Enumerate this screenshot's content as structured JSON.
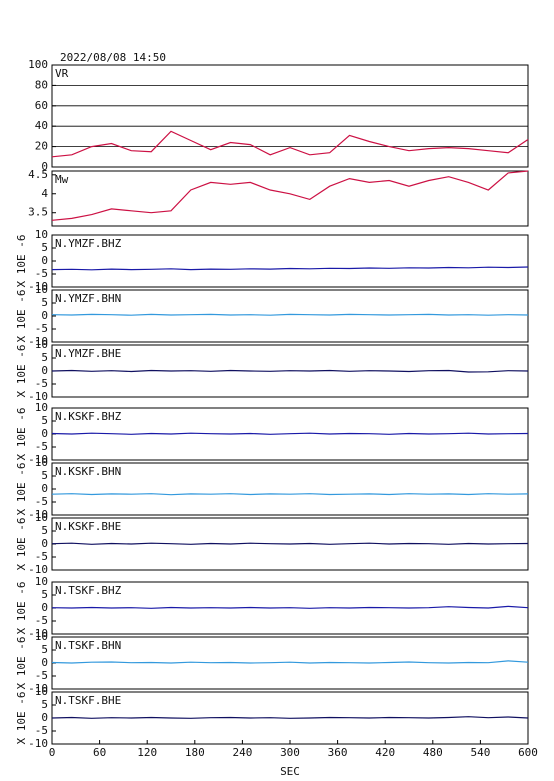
{
  "chart_data": [
    {
      "type": "line",
      "title": "2022/08/08 14:50",
      "label": "VR",
      "color": "#cc1144",
      "grid": true,
      "x": [
        0,
        25,
        50,
        75,
        100,
        125,
        150,
        175,
        200,
        225,
        250,
        275,
        300,
        325,
        350,
        375,
        400,
        425,
        450,
        475,
        500,
        525,
        550,
        575,
        600
      ],
      "values": [
        10,
        12,
        20,
        23,
        16,
        15,
        35,
        26,
        17,
        24,
        22,
        12,
        19,
        12,
        14,
        31,
        25,
        20,
        16,
        18,
        19,
        18,
        16,
        14,
        27
      ],
      "xlim": [
        0,
        600
      ],
      "ylim": [
        0,
        100
      ],
      "yticks": [
        0,
        20,
        40,
        60,
        80,
        100
      ]
    },
    {
      "type": "line",
      "label": "Mw",
      "color": "#cc1144",
      "x": [
        0,
        25,
        50,
        75,
        100,
        125,
        150,
        175,
        200,
        225,
        250,
        275,
        300,
        325,
        350,
        375,
        400,
        425,
        450,
        475,
        500,
        525,
        550,
        575,
        600
      ],
      "values": [
        3.3,
        3.35,
        3.45,
        3.6,
        3.55,
        3.5,
        3.55,
        4.1,
        4.3,
        4.25,
        4.3,
        4.1,
        4.0,
        3.85,
        4.2,
        4.4,
        4.3,
        4.35,
        4.2,
        4.35,
        4.45,
        4.3,
        4.1,
        4.55,
        4.6
      ],
      "xlim": [
        0,
        600
      ],
      "ylim": [
        3.15,
        4.6
      ],
      "yticks": [
        3.5,
        4.0,
        4.5
      ]
    },
    {
      "type": "line",
      "label": "N.YMZF.BHZ",
      "ylabel": "X 10E -6",
      "color": "#1a1aa8",
      "x": [
        0,
        25,
        50,
        75,
        100,
        125,
        150,
        175,
        200,
        225,
        250,
        275,
        300,
        325,
        350,
        375,
        400,
        425,
        450,
        475,
        500,
        525,
        550,
        575,
        600
      ],
      "values": [
        -3.3,
        -3.2,
        -3.4,
        -3.1,
        -3.3,
        -3.2,
        -3.0,
        -3.3,
        -3.1,
        -3.2,
        -3.0,
        -3.1,
        -2.9,
        -3.0,
        -2.8,
        -2.9,
        -2.7,
        -2.8,
        -2.6,
        -2.7,
        -2.5,
        -2.6,
        -2.4,
        -2.5,
        -2.3
      ],
      "xlim": [
        0,
        600
      ],
      "ylim": [
        -10,
        10
      ],
      "yticks": [
        -10,
        -5,
        0,
        5,
        10
      ]
    },
    {
      "type": "line",
      "label": "N.YMZF.BHN",
      "ylabel": "X 10E -6",
      "color": "#3399dd",
      "x": [
        0,
        25,
        50,
        75,
        100,
        125,
        150,
        175,
        200,
        225,
        250,
        275,
        300,
        325,
        350,
        375,
        400,
        425,
        450,
        475,
        500,
        525,
        550,
        575,
        600
      ],
      "values": [
        0.5,
        0.4,
        0.6,
        0.5,
        0.3,
        0.6,
        0.4,
        0.5,
        0.6,
        0.4,
        0.5,
        0.3,
        0.6,
        0.5,
        0.4,
        0.6,
        0.5,
        0.4,
        0.5,
        0.6,
        0.4,
        0.5,
        0.3,
        0.5,
        0.4
      ],
      "xlim": [
        0,
        600
      ],
      "ylim": [
        -10,
        10
      ],
      "yticks": [
        -10,
        -5,
        0,
        5,
        10
      ]
    },
    {
      "type": "line",
      "label": "N.YMZF.BHE",
      "ylabel": "X 10E -6",
      "color": "#101060",
      "x": [
        0,
        25,
        50,
        75,
        100,
        125,
        150,
        175,
        200,
        225,
        250,
        275,
        300,
        325,
        350,
        375,
        400,
        425,
        450,
        475,
        500,
        525,
        550,
        575,
        600
      ],
      "values": [
        0,
        0.2,
        -0.1,
        0.1,
        -0.2,
        0.2,
        0,
        0.1,
        -0.1,
        0.2,
        0,
        -0.1,
        0.1,
        0,
        0.2,
        -0.1,
        0.1,
        0,
        -0.2,
        0.1,
        0.2,
        -0.4,
        -0.3,
        0.1,
        0
      ],
      "xlim": [
        0,
        600
      ],
      "ylim": [
        -10,
        10
      ],
      "yticks": [
        -10,
        -5,
        0,
        5,
        10
      ]
    },
    {
      "type": "line",
      "label": "N.KSKF.BHZ",
      "ylabel": "X 10E -6",
      "color": "#1a1aa8",
      "x": [
        0,
        25,
        50,
        75,
        100,
        125,
        150,
        175,
        200,
        225,
        250,
        275,
        300,
        325,
        350,
        375,
        400,
        425,
        450,
        475,
        500,
        525,
        550,
        575,
        600
      ],
      "values": [
        0.2,
        0,
        0.3,
        0.1,
        -0.1,
        0.2,
        0,
        0.3,
        0.1,
        0,
        0.2,
        -0.1,
        0.1,
        0.3,
        0,
        0.2,
        0.1,
        -0.1,
        0.2,
        0,
        0.1,
        0.3,
        0,
        0.1,
        0.2
      ],
      "xlim": [
        0,
        600
      ],
      "ylim": [
        -10,
        10
      ],
      "yticks": [
        -10,
        -5,
        0,
        5,
        10
      ]
    },
    {
      "type": "line",
      "label": "N.KSKF.BHN",
      "ylabel": "X 10E -6",
      "color": "#3399dd",
      "x": [
        0,
        25,
        50,
        75,
        100,
        125,
        150,
        175,
        200,
        225,
        250,
        275,
        300,
        325,
        350,
        375,
        400,
        425,
        450,
        475,
        500,
        525,
        550,
        575,
        600
      ],
      "values": [
        -2.0,
        -1.8,
        -2.1,
        -1.9,
        -2.0,
        -1.8,
        -2.2,
        -1.9,
        -2.0,
        -1.8,
        -2.1,
        -1.9,
        -2.0,
        -1.8,
        -2.1,
        -2.0,
        -1.9,
        -2.1,
        -1.8,
        -2.0,
        -1.9,
        -2.1,
        -1.8,
        -2.0,
        -1.9
      ],
      "xlim": [
        0,
        600
      ],
      "ylim": [
        -10,
        10
      ],
      "yticks": [
        -10,
        -5,
        0,
        5,
        10
      ]
    },
    {
      "type": "line",
      "label": "N.KSKF.BHE",
      "ylabel": "X 10E -6",
      "color": "#101060",
      "x": [
        0,
        25,
        50,
        75,
        100,
        125,
        150,
        175,
        200,
        225,
        250,
        275,
        300,
        325,
        350,
        375,
        400,
        425,
        450,
        475,
        500,
        525,
        550,
        575,
        600
      ],
      "values": [
        0.1,
        0.3,
        -0.1,
        0.2,
        0,
        0.3,
        0.1,
        -0.1,
        0.2,
        0,
        0.3,
        0.1,
        0,
        0.2,
        -0.1,
        0.1,
        0.3,
        0,
        0.2,
        0.1,
        -0.1,
        0.2,
        0,
        0.1,
        0.2
      ],
      "xlim": [
        0,
        600
      ],
      "ylim": [
        -10,
        10
      ],
      "yticks": [
        -10,
        -5,
        0,
        5,
        10
      ]
    },
    {
      "type": "line",
      "label": "N.TSKF.BHZ",
      "ylabel": "X 10E -6",
      "color": "#1a1aa8",
      "x": [
        0,
        25,
        50,
        75,
        100,
        125,
        150,
        175,
        200,
        225,
        250,
        275,
        300,
        325,
        350,
        375,
        400,
        425,
        450,
        475,
        500,
        525,
        550,
        575,
        600
      ],
      "values": [
        0.1,
        0,
        0.2,
        0,
        0.1,
        -0.1,
        0.2,
        0,
        0.1,
        0,
        0.2,
        0,
        0.1,
        -0.1,
        0.1,
        0,
        0.2,
        0.1,
        0,
        0.1,
        0.5,
        0.2,
        0,
        0.6,
        0.1
      ],
      "xlim": [
        0,
        600
      ],
      "ylim": [
        -10,
        10
      ],
      "yticks": [
        -10,
        -5,
        0,
        5,
        10
      ]
    },
    {
      "type": "line",
      "label": "N.TSKF.BHN",
      "ylabel": "X 10E -6",
      "color": "#3399dd",
      "x": [
        0,
        25,
        50,
        75,
        100,
        125,
        150,
        175,
        200,
        225,
        250,
        275,
        300,
        325,
        350,
        375,
        400,
        425,
        450,
        475,
        500,
        525,
        550,
        575,
        600
      ],
      "values": [
        0.2,
        0,
        0.3,
        0.4,
        0.1,
        0.2,
        0,
        0.3,
        0.1,
        0.2,
        0,
        0.1,
        0.3,
        0,
        0.2,
        0.1,
        0,
        0.2,
        0.4,
        0.1,
        0,
        0.2,
        0.1,
        0.8,
        0.3
      ],
      "xlim": [
        0,
        600
      ],
      "ylim": [
        -10,
        10
      ],
      "yticks": [
        -10,
        -5,
        0,
        5,
        10
      ]
    },
    {
      "type": "line",
      "label": "N.TSKF.BHE",
      "ylabel": "X 10E -6",
      "color": "#101060",
      "xlabel": "SEC",
      "x": [
        0,
        25,
        50,
        75,
        100,
        125,
        150,
        175,
        200,
        225,
        250,
        275,
        300,
        325,
        350,
        375,
        400,
        425,
        450,
        475,
        500,
        525,
        550,
        575,
        600
      ],
      "values": [
        0,
        0.2,
        -0.1,
        0.1,
        0,
        0.2,
        0,
        -0.1,
        0.1,
        0.2,
        0,
        0.1,
        -0.1,
        0,
        0.2,
        0.1,
        0,
        0.2,
        0.1,
        0,
        0.2,
        0.5,
        0.1,
        0.4,
        0
      ],
      "xlim": [
        0,
        600
      ],
      "ylim": [
        -10,
        10
      ],
      "yticks": [
        -10,
        -5,
        0,
        5,
        10
      ],
      "xticks": [
        0,
        60,
        120,
        180,
        240,
        300,
        360,
        420,
        480,
        540,
        600
      ]
    }
  ]
}
